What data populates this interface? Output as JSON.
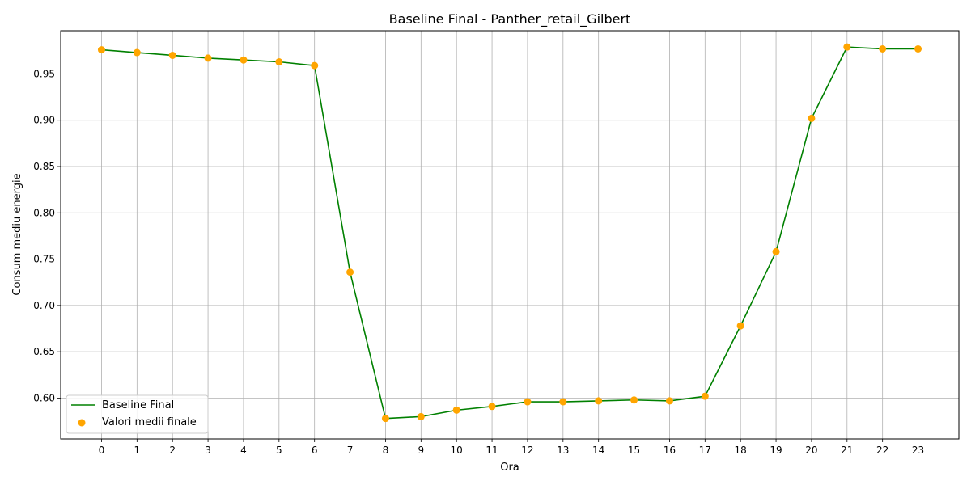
{
  "chart_data": {
    "type": "line",
    "title": "Baseline Final - Panther_retail_Gilbert",
    "xlabel": "Ora",
    "ylabel": "Consum mediu energie",
    "x": [
      0,
      1,
      2,
      3,
      4,
      5,
      6,
      7,
      8,
      9,
      10,
      11,
      12,
      13,
      14,
      15,
      16,
      17,
      18,
      19,
      20,
      21,
      22,
      23
    ],
    "x_tick_labels": [
      "0",
      "1",
      "2",
      "3",
      "4",
      "5",
      "6",
      "7",
      "8",
      "9",
      "10",
      "11",
      "12",
      "13",
      "14",
      "15",
      "16",
      "17",
      "18",
      "19",
      "20",
      "21",
      "22",
      "23"
    ],
    "y_ticks": [
      0.6,
      0.65,
      0.7,
      0.75,
      0.8,
      0.85,
      0.9,
      0.95
    ],
    "y_tick_labels": [
      "0.60",
      "0.65",
      "0.70",
      "0.75",
      "0.80",
      "0.85",
      "0.90",
      "0.95"
    ],
    "xlim": [
      -1.15,
      24.15
    ],
    "ylim": [
      0.5559,
      0.9966
    ],
    "grid": true,
    "legend_position": "lower-left",
    "series": [
      {
        "name": "Baseline Final",
        "kind": "line",
        "color": "#008000",
        "values": [
          0.976,
          0.973,
          0.97,
          0.967,
          0.965,
          0.963,
          0.959,
          0.736,
          0.578,
          0.58,
          0.587,
          0.591,
          0.596,
          0.596,
          0.597,
          0.598,
          0.597,
          0.602,
          0.678,
          0.758,
          0.902,
          0.979,
          0.977,
          0.977
        ]
      },
      {
        "name": "Valori medii finale",
        "kind": "scatter",
        "color": "#FFA500",
        "values": [
          0.976,
          0.973,
          0.97,
          0.967,
          0.965,
          0.963,
          0.959,
          0.736,
          0.578,
          0.58,
          0.587,
          0.591,
          0.596,
          0.596,
          0.597,
          0.598,
          0.597,
          0.602,
          0.678,
          0.758,
          0.902,
          0.979,
          0.977,
          0.977
        ]
      }
    ]
  }
}
